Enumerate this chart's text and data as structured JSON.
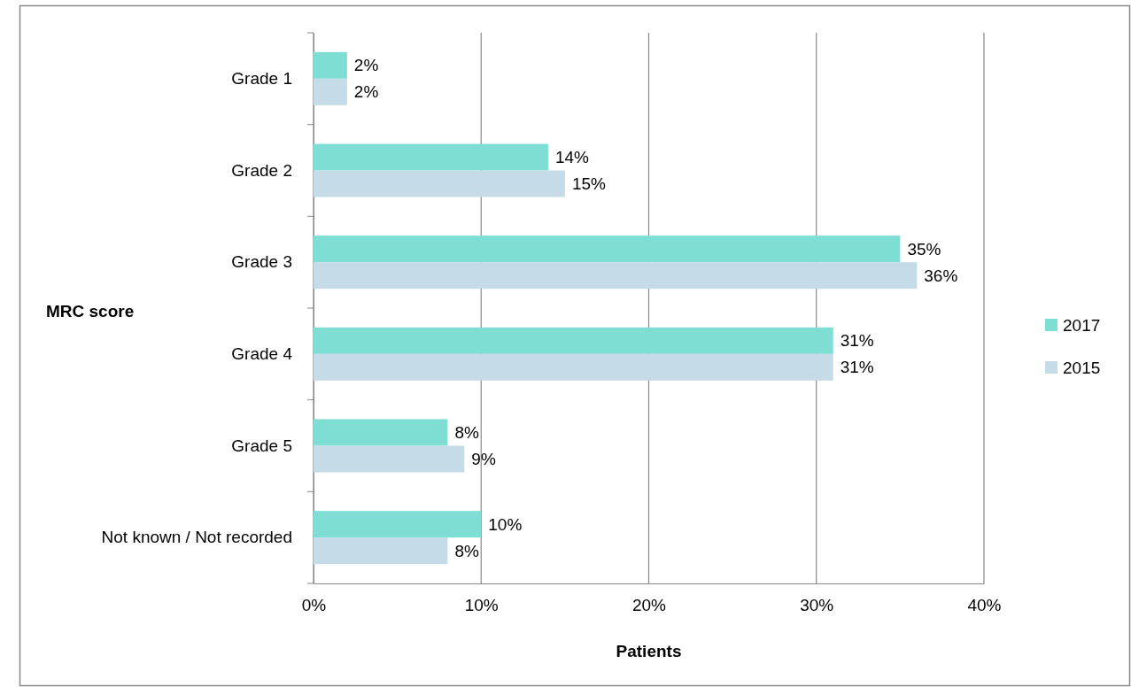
{
  "chart_data": {
    "type": "bar",
    "orientation": "horizontal",
    "xlabel": "Patients",
    "ylabel": "MRC score",
    "categories": [
      "Grade 1",
      "Grade 2",
      "Grade 3",
      "Grade 4",
      "Grade 5",
      "Not known / Not recorded"
    ],
    "series": [
      {
        "name": "2017",
        "color": "#7fded4",
        "values": [
          2,
          14,
          35,
          31,
          8,
          10
        ],
        "value_labels": [
          "2%",
          "14%",
          "35%",
          "31%",
          "8%",
          "10%"
        ]
      },
      {
        "name": "2015",
        "color": "#c5dbe7",
        "values": [
          2,
          15,
          36,
          31,
          9,
          8
        ],
        "value_labels": [
          "2%",
          "15%",
          "36%",
          "31%",
          "9%",
          "8%"
        ]
      }
    ],
    "xlim": [
      0,
      40
    ],
    "xticks": [
      {
        "value": 0,
        "label": "0%"
      },
      {
        "value": 10,
        "label": "10%"
      },
      {
        "value": 20,
        "label": "20%"
      },
      {
        "value": 30,
        "label": "30%"
      },
      {
        "value": 40,
        "label": "40%"
      }
    ],
    "grid": "x",
    "legend": "right"
  }
}
